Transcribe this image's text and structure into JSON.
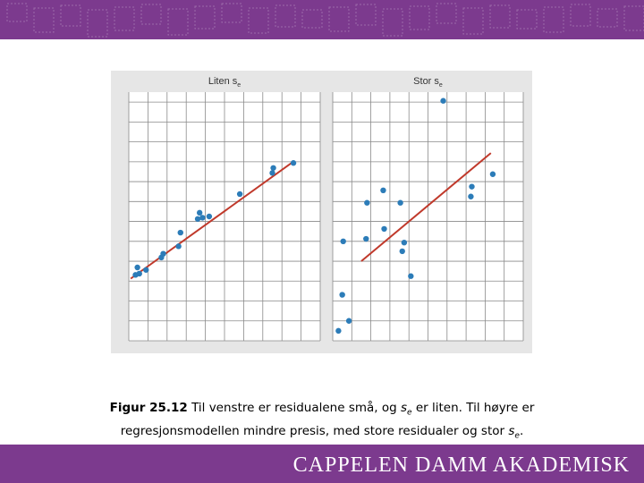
{
  "colors": {
    "banner": "#7c3a8e",
    "panel_bg": "#e6e6e6",
    "plot_bg": "#ffffff",
    "grid": "#8a8a8a",
    "point": "#2c7cb8",
    "line": "#c0392b"
  },
  "logo": {
    "text": "CAPPELEN DAMM AKADEMISK"
  },
  "caption": {
    "label": "Figur 25.12",
    "part1": " Til venstre er residualene små, og ",
    "s1": "s",
    "sub1": "e",
    "part2": " er liten. Til høyre er regresjonsmodellen mindre presis, med store residualer og stor ",
    "s2": "s",
    "sub2": "e",
    "end": "."
  },
  "chart_data": [
    {
      "type": "scatter",
      "title_main": "Liten s",
      "title_sub": "e",
      "xlim": [
        0,
        10
      ],
      "ylim": [
        0,
        10
      ],
      "grid": true,
      "points": [
        {
          "x": 0.35,
          "y": 2.65
        },
        {
          "x": 0.45,
          "y": 2.95
        },
        {
          "x": 0.55,
          "y": 2.7
        },
        {
          "x": 0.9,
          "y": 2.85
        },
        {
          "x": 1.7,
          "y": 3.35
        },
        {
          "x": 1.8,
          "y": 3.5
        },
        {
          "x": 2.6,
          "y": 3.8
        },
        {
          "x": 2.7,
          "y": 4.35
        },
        {
          "x": 3.6,
          "y": 4.9
        },
        {
          "x": 3.7,
          "y": 5.15
        },
        {
          "x": 3.85,
          "y": 4.95
        },
        {
          "x": 4.2,
          "y": 5.0
        },
        {
          "x": 5.8,
          "y": 5.9
        },
        {
          "x": 7.5,
          "y": 6.75
        },
        {
          "x": 7.55,
          "y": 6.95
        },
        {
          "x": 8.6,
          "y": 7.15
        }
      ],
      "fit_line": {
        "x": [
          0.1,
          8.5
        ],
        "y": [
          2.5,
          7.15
        ]
      }
    },
    {
      "type": "scatter",
      "title_main": "Stor s",
      "title_sub": "e",
      "xlim": [
        0,
        10
      ],
      "ylim": [
        0,
        10
      ],
      "grid": true,
      "points": [
        {
          "x": 0.3,
          "y": 0.4
        },
        {
          "x": 0.5,
          "y": 1.85
        },
        {
          "x": 0.55,
          "y": 4.0
        },
        {
          "x": 0.85,
          "y": 0.8
        },
        {
          "x": 1.75,
          "y": 4.1
        },
        {
          "x": 1.8,
          "y": 5.55
        },
        {
          "x": 2.65,
          "y": 6.05
        },
        {
          "x": 2.7,
          "y": 4.5
        },
        {
          "x": 3.55,
          "y": 5.55
        },
        {
          "x": 3.65,
          "y": 3.6
        },
        {
          "x": 3.75,
          "y": 3.95
        },
        {
          "x": 4.1,
          "y": 2.6
        },
        {
          "x": 5.8,
          "y": 9.65
        },
        {
          "x": 7.25,
          "y": 5.8
        },
        {
          "x": 7.3,
          "y": 6.2
        },
        {
          "x": 8.4,
          "y": 6.7
        }
      ],
      "fit_line": {
        "x": [
          1.5,
          8.3
        ],
        "y": [
          3.2,
          7.55
        ]
      }
    }
  ]
}
